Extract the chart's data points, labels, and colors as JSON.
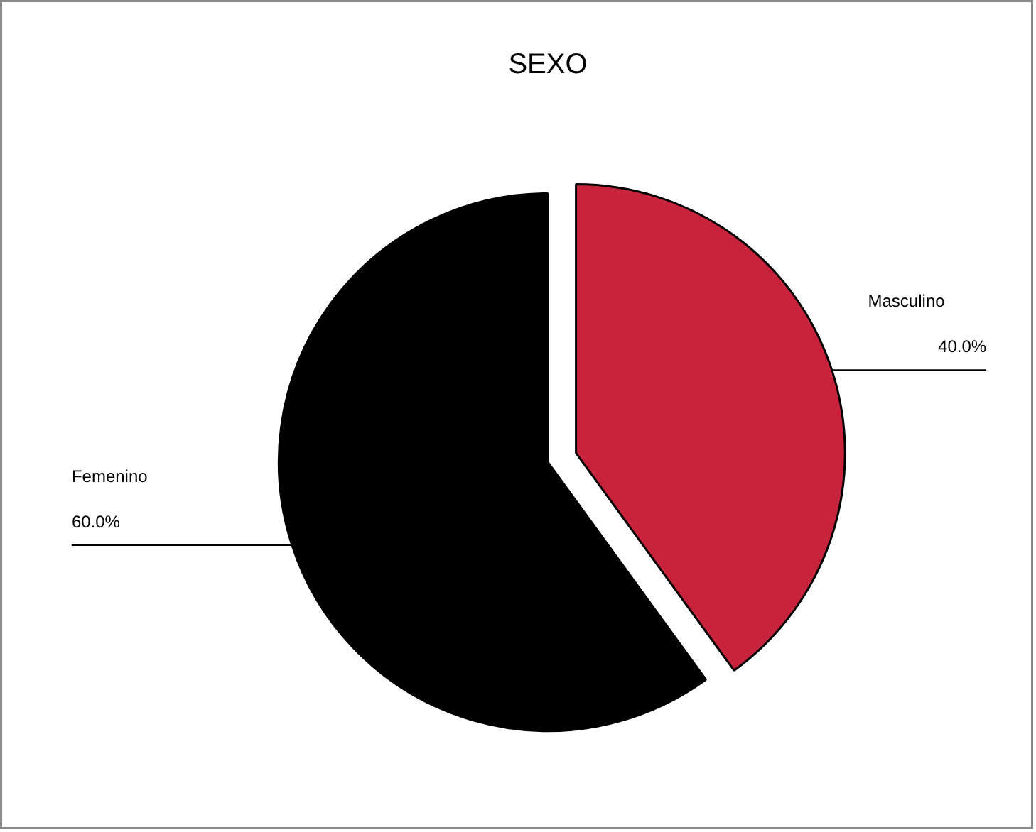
{
  "chart_data": {
    "type": "pie",
    "title": "SEXO",
    "categories": [
      "Masculino",
      "Femenino"
    ],
    "values": [
      40,
      60
    ],
    "colors": [
      "#c8233c",
      "#000000"
    ],
    "value_labels": [
      "40.0%",
      "60.0%"
    ]
  }
}
